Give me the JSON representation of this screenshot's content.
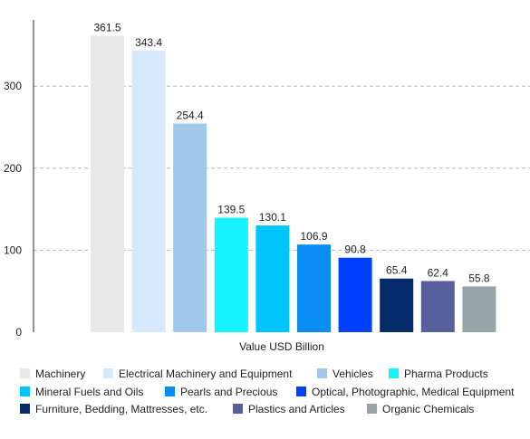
{
  "chart_data": {
    "type": "bar",
    "title": "",
    "xlabel": "Value USD Billion",
    "ylabel": "",
    "ylim": [
      0,
      380
    ],
    "yticks": [
      0,
      100,
      200,
      300
    ],
    "grid": true,
    "legend_position": "bottom",
    "categories": [
      "Machinery",
      "Electrical Machinery and Equipment",
      "Vehicles",
      "Pharma Products",
      "Mineral Fuels and Oils",
      "Pearls and Precious",
      "Optical, Photographic, Medical Equipment",
      "Furniture, Bedding, Mattresses, etc.",
      "Plastics and Articles",
      "Organic Chemicals"
    ],
    "values": [
      361.5,
      343.4,
      254.4,
      139.5,
      130.1,
      106.9,
      90.8,
      65.4,
      62.4,
      55.8
    ],
    "value_labels": [
      "361.5",
      "343.4",
      "254.4",
      "139.5",
      "130.1",
      "106.9",
      "90.8",
      "65.4",
      "62.4",
      "55.8"
    ],
    "colors": [
      "#e8e8e8",
      "#d6e8fb",
      "#9fc8ea",
      "#17f2ff",
      "#00c5ff",
      "#0a8df2",
      "#0041ff",
      "#062c6b",
      "#56609d",
      "#97a4a8"
    ]
  }
}
